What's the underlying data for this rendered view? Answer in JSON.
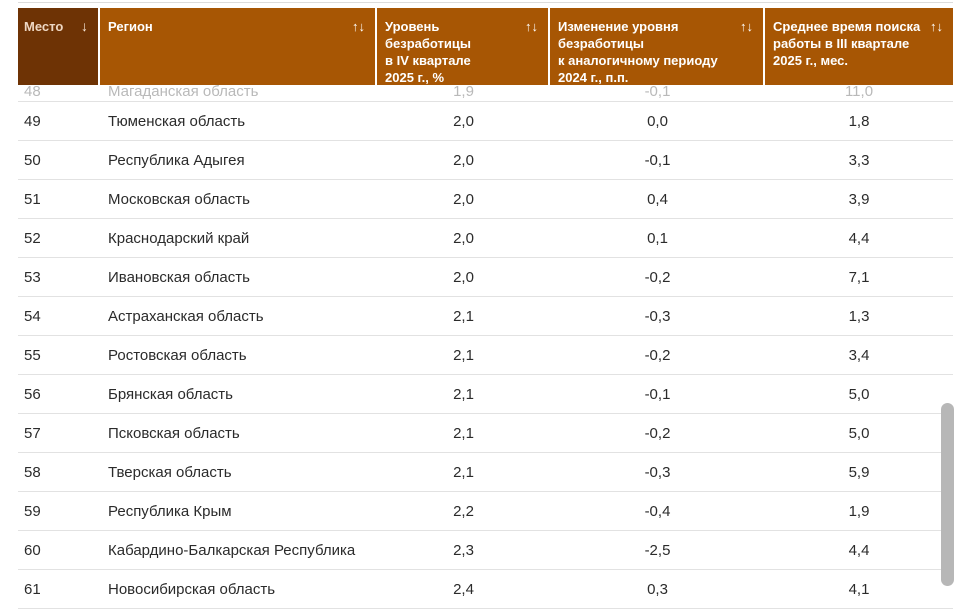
{
  "colors": {
    "header_dark": "#6e3305",
    "header_light": "#a75604",
    "header_text": "#ffffff",
    "place_header_text": "#eed7c3",
    "place_sort_icon": "#f7e9db",
    "row_text": "#2b2b2b",
    "faded_text": "#b9b9b9",
    "row_border": "#e2e2e2",
    "scrollbar_thumb": "#b7b7b7",
    "divider": "#dcdcdc",
    "page_bg": "#ffffff"
  },
  "table": {
    "columns": [
      {
        "label": "Место",
        "sort_icon": "↓"
      },
      {
        "label": "Регион",
        "sort_icon": "↑↓"
      },
      {
        "label": "Уровень\nбезработицы\nв IV квартале\n2025 г., %",
        "sort_icon": "↑↓"
      },
      {
        "label": "Изменение уровня\nбезработицы\nк аналогичному периоду\n2024 г., п.п.",
        "sort_icon": "↑↓"
      },
      {
        "label": "Среднее время поиска\nработы в III квартале\n2025 г., мес.",
        "sort_icon": "↑↓"
      }
    ],
    "rows": [
      {
        "faded": true,
        "cells": [
          "48",
          "Магаданская область",
          "1,9",
          "-0,1",
          "11,0"
        ]
      },
      {
        "faded": false,
        "cells": [
          "49",
          "Тюменская область",
          "2,0",
          "0,0",
          "1,8"
        ]
      },
      {
        "faded": false,
        "cells": [
          "50",
          "Республика Адыгея",
          "2,0",
          "-0,1",
          "3,3"
        ]
      },
      {
        "faded": false,
        "cells": [
          "51",
          "Московская область",
          "2,0",
          "0,4",
          "3,9"
        ]
      },
      {
        "faded": false,
        "cells": [
          "52",
          "Краснодарский край",
          "2,0",
          "0,1",
          "4,4"
        ]
      },
      {
        "faded": false,
        "cells": [
          "53",
          "Ивановская область",
          "2,0",
          "-0,2",
          "7,1"
        ]
      },
      {
        "faded": false,
        "cells": [
          "54",
          "Астраханская область",
          "2,1",
          "-0,3",
          "1,3"
        ]
      },
      {
        "faded": false,
        "cells": [
          "55",
          "Ростовская область",
          "2,1",
          "-0,2",
          "3,4"
        ]
      },
      {
        "faded": false,
        "cells": [
          "56",
          "Брянская область",
          "2,1",
          "-0,1",
          "5,0"
        ]
      },
      {
        "faded": false,
        "cells": [
          "57",
          "Псковская область",
          "2,1",
          "-0,2",
          "5,0"
        ]
      },
      {
        "faded": false,
        "cells": [
          "58",
          "Тверская область",
          "2,1",
          "-0,3",
          "5,9"
        ]
      },
      {
        "faded": false,
        "cells": [
          "59",
          "Республика Крым",
          "2,2",
          "-0,4",
          "1,9"
        ]
      },
      {
        "faded": false,
        "cells": [
          "60",
          "Кабардино-Балкарская Республика",
          "2,3",
          "-2,5",
          "4,4"
        ]
      },
      {
        "faded": false,
        "cells": [
          "61",
          "Новосибирская область",
          "2,4",
          "0,3",
          "4,1"
        ]
      }
    ]
  }
}
